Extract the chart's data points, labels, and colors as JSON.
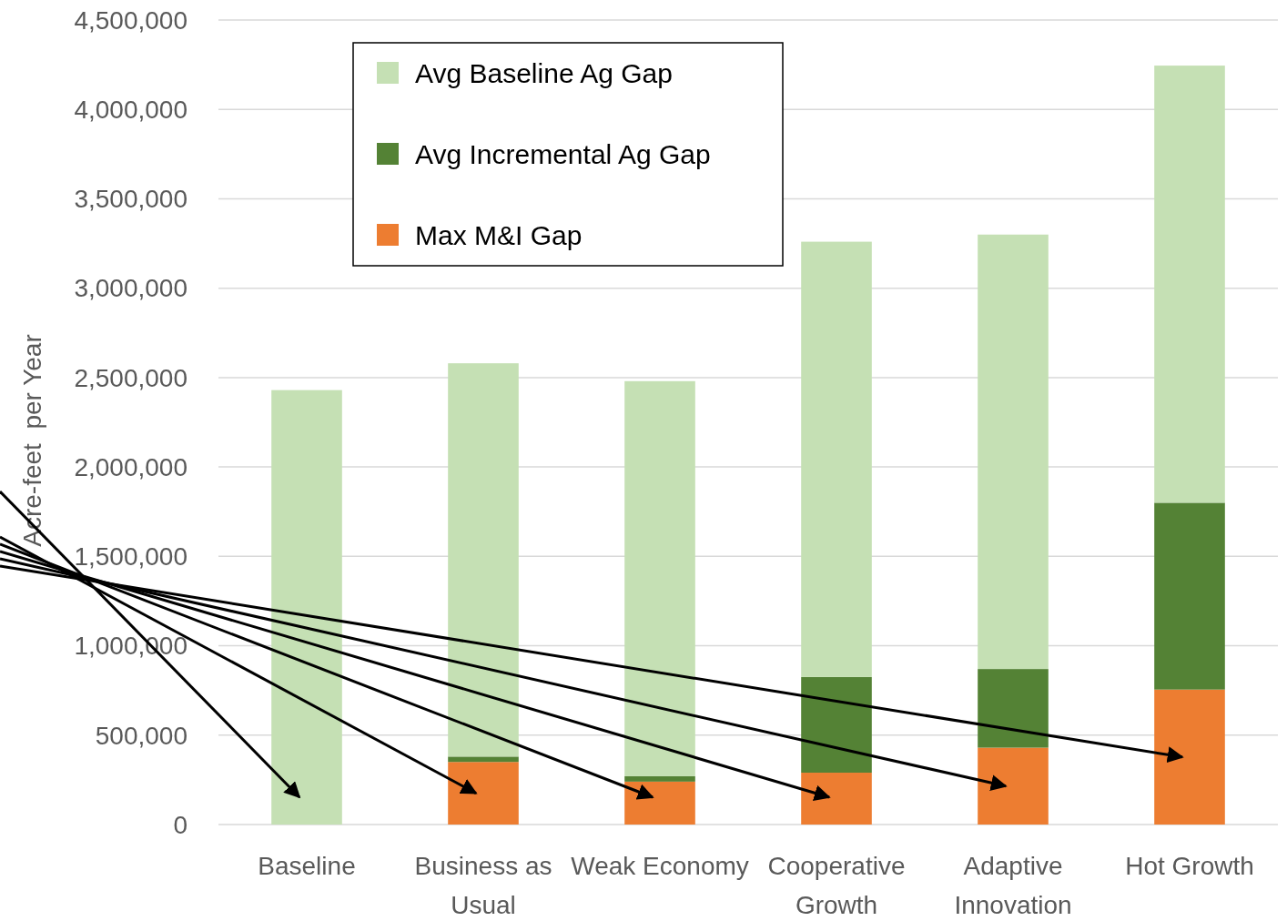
{
  "chart_data": {
    "type": "bar",
    "stacked": true,
    "ylabel": "Acre-feet  per Year",
    "categories": [
      "Baseline",
      "Business as Usual",
      "Weak Economy",
      "Cooperative Growth",
      "Adaptive Innovation",
      "Hot Growth"
    ],
    "series": [
      {
        "name": "Max M&I Gap",
        "color": "#ed7d31",
        "values": [
          0,
          350000,
          240000,
          290000,
          430000,
          755000
        ]
      },
      {
        "name": "Avg Incremental Ag Gap",
        "color": "#548235",
        "values": [
          0,
          30000,
          30000,
          535000,
          440000,
          1045000
        ]
      },
      {
        "name": "Avg Baseline Ag Gap",
        "color": "#c5e0b4",
        "values": [
          2430000,
          2200000,
          2210000,
          2435000,
          2430000,
          2445000
        ]
      }
    ],
    "ylim": [
      0,
      4500000
    ],
    "yticks": [
      {
        "value": 0,
        "label": "0"
      },
      {
        "value": 500000,
        "label": "500,000"
      },
      {
        "value": 1000000,
        "label": "1,000,000"
      },
      {
        "value": 1500000,
        "label": "1,500,000"
      },
      {
        "value": 2000000,
        "label": "2,000,000"
      },
      {
        "value": 2500000,
        "label": "2,500,000"
      },
      {
        "value": 3000000,
        "label": "3,000,000"
      },
      {
        "value": 3500000,
        "label": "3,500,000"
      },
      {
        "value": 4000000,
        "label": "4,000,000"
      },
      {
        "value": 4500000,
        "label": "4,500,000"
      }
    ],
    "grid": "y",
    "legend": "top left"
  }
}
